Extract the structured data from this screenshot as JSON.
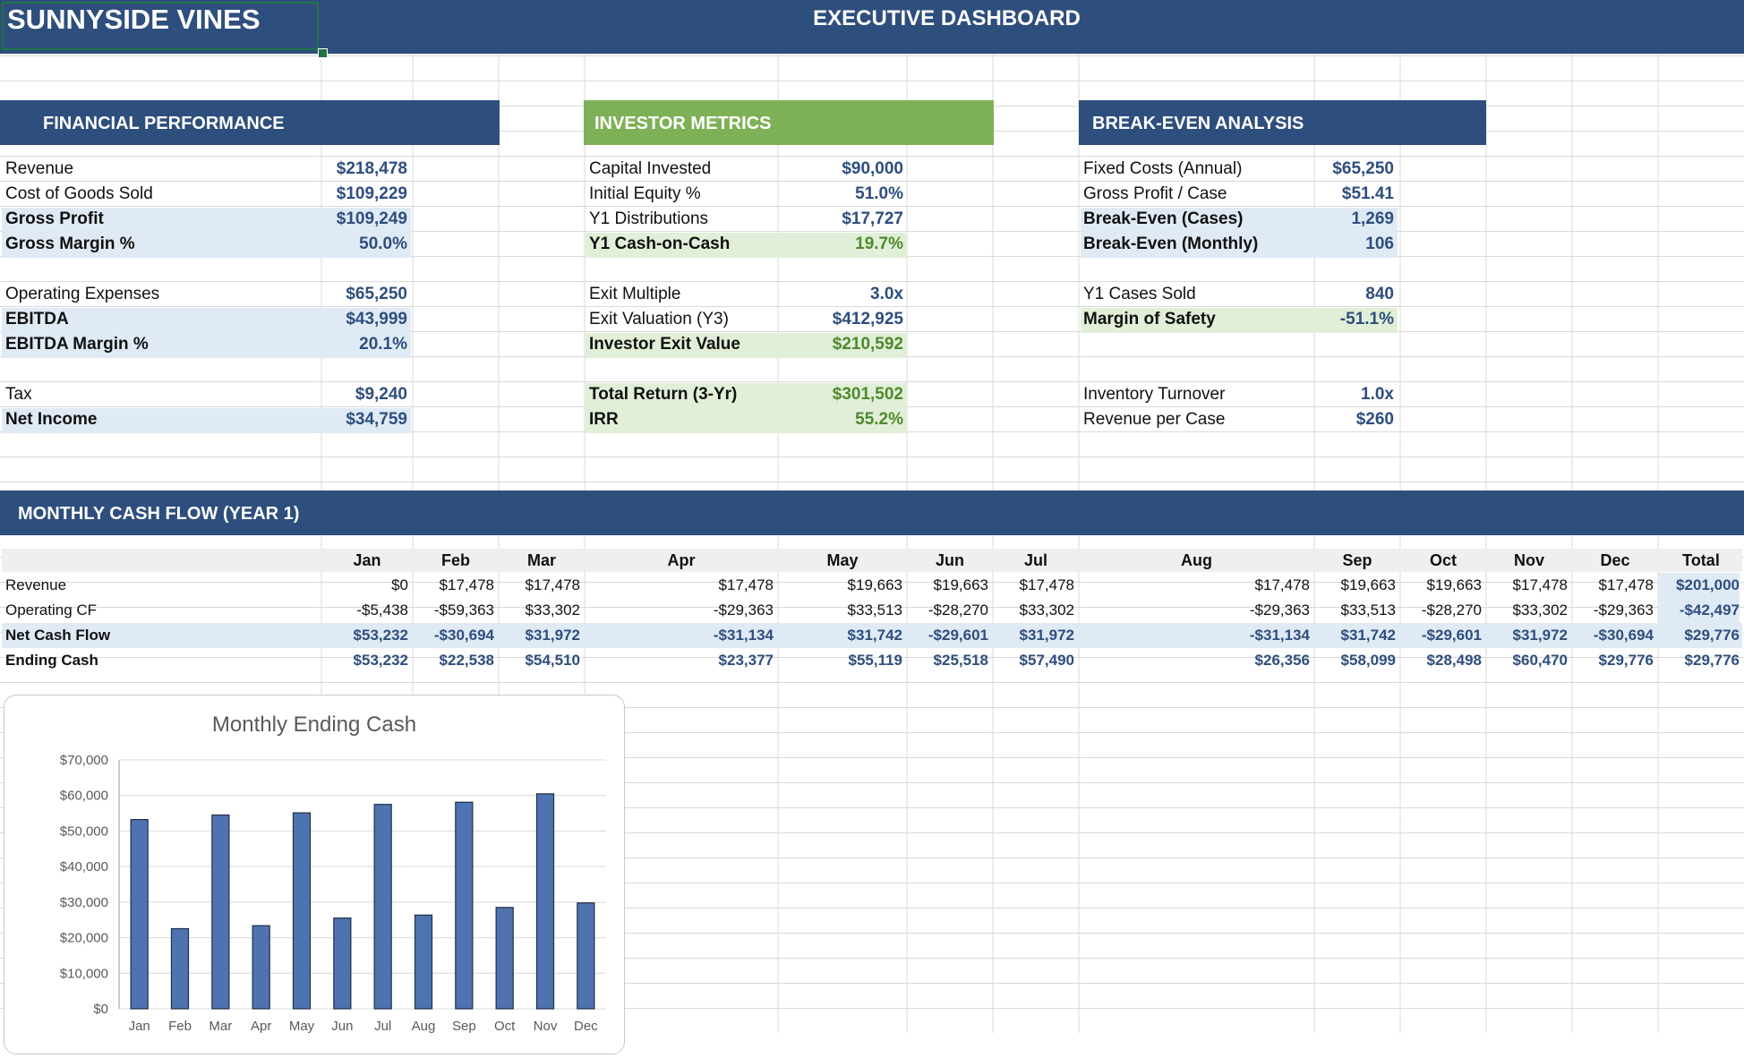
{
  "title": {
    "company": "SUNNYSIDE VINES",
    "dashboard": "EXECUTIVE DASHBOARD"
  },
  "financial": {
    "header": "FINANCIAL PERFORMANCE",
    "rows": [
      {
        "label": "Revenue",
        "value": "$218,478"
      },
      {
        "label": "Cost of Goods Sold",
        "value": "$109,229"
      },
      {
        "label": "Gross Profit",
        "value": "$109,249"
      },
      {
        "label": "Gross Margin %",
        "value": "50.0%"
      },
      {
        "label": "Operating Expenses",
        "value": "$65,250"
      },
      {
        "label": "EBITDA",
        "value": "$43,999"
      },
      {
        "label": "EBITDA Margin %",
        "value": "20.1%"
      },
      {
        "label": "Tax",
        "value": "$9,240"
      },
      {
        "label": "Net Income",
        "value": "$34,759"
      }
    ]
  },
  "investor": {
    "header": "INVESTOR METRICS",
    "rows": [
      {
        "label": "Capital Invested",
        "value": "$90,000"
      },
      {
        "label": "Initial Equity %",
        "value": "51.0%"
      },
      {
        "label": "Y1 Distributions",
        "value": "$17,727"
      },
      {
        "label": "Y1 Cash-on-Cash",
        "value": "19.7%"
      },
      {
        "label": "Exit Multiple",
        "value": "3.0x"
      },
      {
        "label": "Exit Valuation (Y3)",
        "value": "$412,925"
      },
      {
        "label": "Investor Exit Value",
        "value": "$210,592"
      },
      {
        "label": "Total Return (3-Yr)",
        "value": "$301,502"
      },
      {
        "label": "IRR",
        "value": "55.2%"
      }
    ]
  },
  "breakeven": {
    "header": "BREAK-EVEN ANALYSIS",
    "rows": [
      {
        "label": "Fixed Costs (Annual)",
        "value": "$65,250"
      },
      {
        "label": "Gross Profit / Case",
        "value": "$51.41"
      },
      {
        "label": "Break-Even (Cases)",
        "value": "1,269"
      },
      {
        "label": "Break-Even (Monthly)",
        "value": "106"
      },
      {
        "label": "Y1 Cases Sold",
        "value": "840"
      },
      {
        "label": "Margin of Safety",
        "value": "-51.1%"
      },
      {
        "label": "Inventory Turnover",
        "value": "1.0x"
      },
      {
        "label": "Revenue per Case",
        "value": "$260"
      }
    ]
  },
  "cashflow": {
    "header": "MONTHLY CASH FLOW (YEAR 1)",
    "months": [
      "Jan",
      "Feb",
      "Mar",
      "Apr",
      "May",
      "Jun",
      "Jul",
      "Aug",
      "Sep",
      "Oct",
      "Nov",
      "Dec",
      "Total"
    ],
    "rows": [
      {
        "label": "Revenue",
        "values": [
          "$0",
          "$17,478",
          "$17,478",
          "$17,478",
          "$19,663",
          "$19,663",
          "$17,478",
          "$17,478",
          "$19,663",
          "$19,663",
          "$17,478",
          "$17,478",
          "$201,000"
        ]
      },
      {
        "label": "Operating CF",
        "values": [
          "-$5,438",
          "-$59,363",
          "$33,302",
          "-$29,363",
          "$33,513",
          "-$28,270",
          "$33,302",
          "-$29,363",
          "$33,513",
          "-$28,270",
          "$33,302",
          "-$29,363",
          "-$42,497"
        ]
      },
      {
        "label": "Net Cash Flow",
        "values": [
          "$53,232",
          "-$30,694",
          "$31,972",
          "-$31,134",
          "$31,742",
          "-$29,601",
          "$31,972",
          "-$31,134",
          "$31,742",
          "-$29,601",
          "$31,972",
          "-$30,694",
          "$29,776"
        ]
      },
      {
        "label": "Ending Cash",
        "values": [
          "$53,232",
          "$22,538",
          "$54,510",
          "$23,377",
          "$55,119",
          "$25,518",
          "$57,490",
          "$26,356",
          "$58,099",
          "$28,498",
          "$60,470",
          "$29,776",
          "$29,776"
        ]
      }
    ]
  },
  "chart_data": {
    "type": "bar",
    "title": "Monthly Ending Cash",
    "categories": [
      "Jan",
      "Feb",
      "Mar",
      "Apr",
      "May",
      "Jun",
      "Jul",
      "Aug",
      "Sep",
      "Oct",
      "Nov",
      "Dec"
    ],
    "values": [
      53232,
      22538,
      54510,
      23377,
      55119,
      25518,
      57490,
      26356,
      58099,
      28498,
      60470,
      29776
    ],
    "ylim": [
      0,
      70000
    ],
    "yticks": [
      "$0",
      "$10,000",
      "$20,000",
      "$30,000",
      "$40,000",
      "$50,000",
      "$60,000",
      "$70,000"
    ],
    "grid": true,
    "bar_color": "#4f73b0"
  },
  "colors": {
    "header_navy": "#2e4e7d",
    "header_green": "#7eb157",
    "value_blue": "#2e4e7d",
    "value_green": "#4e8a2e",
    "highlight_blue": "#dfeaf5",
    "highlight_green": "#e1efd8"
  }
}
